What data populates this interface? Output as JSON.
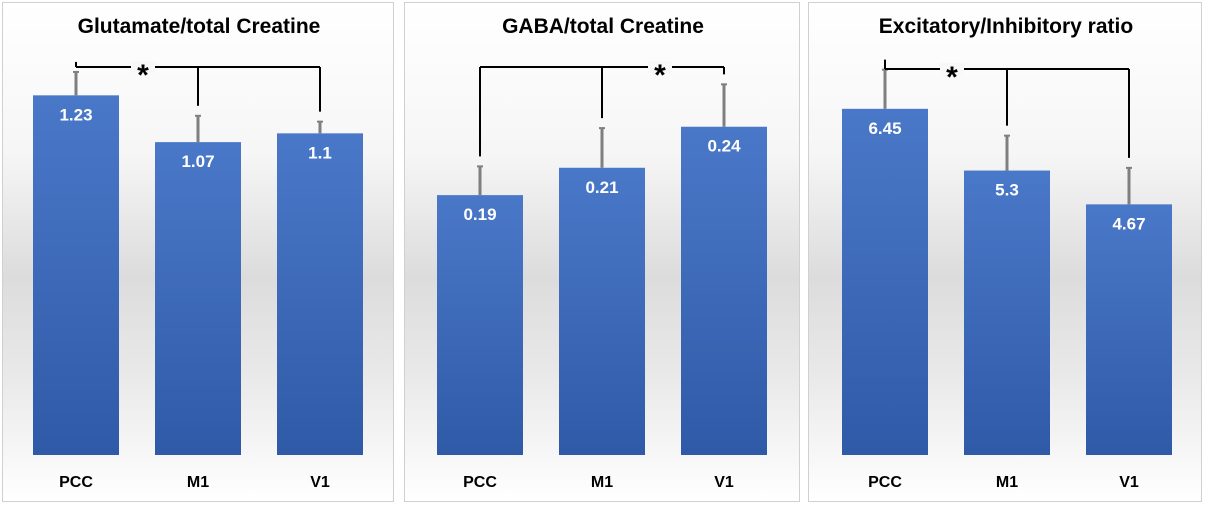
{
  "chart_data": [
    {
      "type": "bar",
      "title": "Glutamate/total Creatine",
      "categories": [
        "PCC",
        "M1",
        "V1"
      ],
      "values": [
        1.23,
        1.07,
        1.1
      ],
      "value_labels": [
        "1.23",
        "1.07",
        "1.1"
      ],
      "errors": [
        0.08,
        0.09,
        0.04
      ],
      "ylim": [
        0,
        1.45
      ],
      "significance": {
        "from": 0,
        "to": [
          1,
          2
        ],
        "marker": "*"
      },
      "bar_color": "#4472C4"
    },
    {
      "type": "bar",
      "title": "GABA/total Creatine",
      "categories": [
        "PCC",
        "M1",
        "V1"
      ],
      "values": [
        0.19,
        0.21,
        0.24
      ],
      "value_labels": [
        "0.19",
        "0.21",
        "0.24"
      ],
      "errors": [
        0.021,
        0.029,
        0.031
      ],
      "ylim": [
        0,
        0.31
      ],
      "significance": {
        "from": 0,
        "to": [
          1,
          2
        ],
        "marker": "*"
      },
      "bar_color": "#4472C4"
    },
    {
      "type": "bar",
      "title": "Excitatory/Inhibitory ratio",
      "categories": [
        "PCC",
        "M1",
        "V1"
      ],
      "values": [
        6.45,
        5.3,
        4.67
      ],
      "value_labels": [
        "6.45",
        "5.3",
        "4.67"
      ],
      "errors": [
        0.73,
        0.65,
        0.68
      ],
      "ylim": [
        0,
        7.9
      ],
      "significance": {
        "from": 0,
        "to": [
          1,
          2
        ],
        "marker": "*"
      },
      "bar_color": "#4472C4"
    }
  ]
}
